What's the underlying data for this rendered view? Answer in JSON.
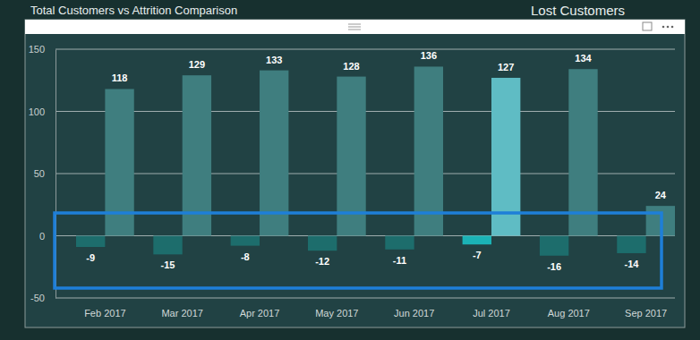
{
  "chart_data": {
    "type": "bar",
    "title": "Total Customers vs Attrition Comparison",
    "annotations": [
      "Lost Customers"
    ],
    "categories": [
      "Feb 2017",
      "Mar 2017",
      "Apr 2017",
      "May 2017",
      "Jun 2017",
      "Jul 2017",
      "Aug 2017",
      "Sep 2017"
    ],
    "series": [
      {
        "values": [
          -9,
          -15,
          -8,
          -12,
          -11,
          -7,
          -16,
          -14
        ],
        "colors": [
          "#1d6d6c",
          "#1d6d6c",
          "#1d6d6c",
          "#1d6d6c",
          "#1d6d6c",
          "#1bb3b6",
          "#1d6d6c",
          "#1d6d6c"
        ]
      },
      {
        "values": [
          118,
          129,
          133,
          128,
          136,
          127,
          134,
          24
        ],
        "colors": [
          "#3f7e7f",
          "#3f7e7f",
          "#3f7e7f",
          "#3f7e7f",
          "#3f7e7f",
          "#5fbcc4",
          "#3f7e7f",
          "#3f7e7f"
        ]
      }
    ],
    "ylim": [
      -50,
      150
    ],
    "yticks": [
      -50,
      0,
      50,
      100,
      150
    ],
    "grid": true,
    "data_labels": true
  }
}
